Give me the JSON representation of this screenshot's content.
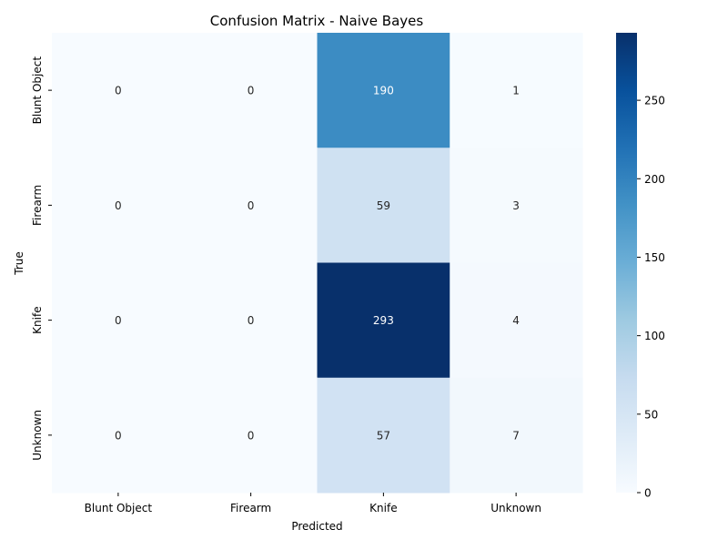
{
  "chart_data": {
    "type": "heatmap",
    "title": "Confusion Matrix - Naive Bayes",
    "xlabel": "Predicted",
    "ylabel": "True",
    "x_categories": [
      "Blunt Object",
      "Firearm",
      "Knife",
      "Unknown"
    ],
    "y_categories": [
      "Blunt Object",
      "Firearm",
      "Knife",
      "Unknown"
    ],
    "values": [
      [
        0,
        0,
        190,
        1
      ],
      [
        0,
        0,
        59,
        3
      ],
      [
        0,
        0,
        293,
        4
      ],
      [
        0,
        0,
        57,
        7
      ]
    ],
    "colorbar": {
      "min": 0,
      "max": 293,
      "ticks": [
        0,
        50,
        100,
        150,
        200,
        250
      ],
      "colormap": "Blues"
    }
  }
}
